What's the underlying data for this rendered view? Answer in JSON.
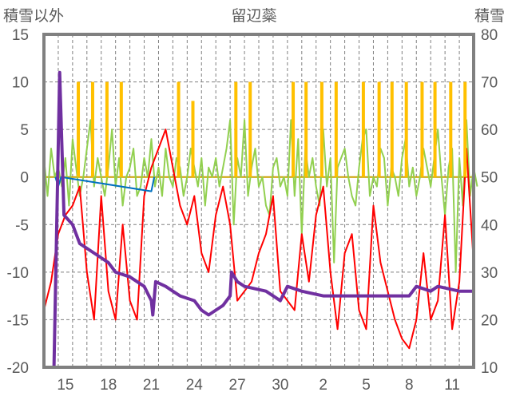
{
  "chart_data": {
    "type": "line",
    "title": "留辺蘂",
    "ylabel_left": "積雪以外",
    "ylabel_right": "積雪",
    "ylim_left": [
      -20,
      15
    ],
    "yticks_left": [
      "15",
      "10",
      "5",
      "0",
      "-5",
      "-10",
      "-15",
      "-20"
    ],
    "ylim_right": [
      10,
      80
    ],
    "yticks_right": [
      "80",
      "70",
      "60",
      "50",
      "40",
      "30",
      "20",
      "10"
    ],
    "x_unit": "days since Dec 14",
    "xlim": [
      0,
      30
    ],
    "xtick_labels": [
      "15",
      "18",
      "21",
      "24",
      "27",
      "30",
      "2",
      "5",
      "8",
      "11"
    ],
    "grid": true,
    "series": [
      {
        "name": "green",
        "axis": "left",
        "color": "#92d050",
        "x_step": 0.25,
        "values": [
          2,
          -2,
          3,
          0,
          1,
          -1,
          2,
          -3,
          4,
          1,
          -2,
          0,
          3,
          6,
          -1,
          2,
          0,
          -2,
          1,
          5,
          -1,
          2,
          -3,
          0,
          1,
          3,
          -2,
          -1,
          2,
          0,
          4,
          -1,
          1,
          -2,
          3,
          0,
          -1,
          2,
          1,
          -2,
          0,
          3,
          1,
          -1,
          2,
          -3,
          1,
          0,
          2,
          -1,
          1,
          3,
          6,
          -5,
          2,
          0,
          6,
          -2,
          1,
          3,
          -1,
          0,
          -3,
          -4,
          1,
          2,
          -1,
          0,
          -2,
          6,
          -2,
          4,
          -6,
          3,
          0,
          2,
          -1,
          -3,
          5,
          -1,
          2,
          -9,
          1,
          2,
          3,
          0,
          -2,
          -3,
          1,
          4,
          5,
          -2,
          0,
          -1,
          3,
          2,
          -3,
          1,
          0,
          -2,
          2,
          4,
          -1,
          1,
          -2,
          0,
          3,
          1,
          -1,
          2,
          5,
          0,
          -4,
          1,
          3,
          -10,
          2,
          -3,
          6,
          -2,
          1,
          -1
        ]
      },
      {
        "name": "red",
        "axis": "left",
        "color": "#ff0000",
        "x_step": 0.5,
        "values": [
          -14,
          -11,
          -6,
          -4,
          -3,
          -1,
          -10,
          -15,
          -2,
          -12,
          -15,
          -5,
          -13,
          -15,
          -2,
          1,
          3,
          5,
          1,
          -3,
          -5,
          -2,
          -8,
          -10,
          -4,
          -1,
          -5,
          -13,
          -12,
          -11,
          -8,
          -6,
          -2,
          -12,
          -13,
          -14,
          -6,
          -11,
          -4,
          -1,
          -10,
          -16,
          -8,
          -6,
          -14,
          -16,
          -3,
          -9,
          -12,
          -15,
          -17,
          -18,
          -15,
          -8,
          -15,
          -13,
          -4,
          -16,
          -11,
          3,
          -9
        ]
      },
      {
        "name": "orange",
        "axis": "left",
        "color": "#ffc000",
        "type": "bar",
        "x": [
          2.4,
          3.4,
          4.4,
          5.4,
          9.4,
          10.4,
          13.4,
          14.4,
          17.4,
          18.3,
          19.4,
          20.4,
          22.3,
          23.4,
          24.3,
          25.3,
          26.4,
          27.3,
          28.4,
          29.4
        ],
        "values": [
          10,
          10,
          10,
          10,
          10,
          8,
          10,
          10,
          10,
          10,
          10,
          10,
          10,
          10,
          10,
          10,
          10,
          10,
          10,
          10
        ]
      },
      {
        "name": "blue",
        "axis": "left",
        "color": "#0070c0",
        "x": [
          0.8,
          1.0,
          1.2,
          7.5,
          7.7
        ],
        "values": [
          0,
          -1,
          0,
          -1.5,
          0
        ]
      },
      {
        "name": "purple",
        "axis": "right",
        "color": "#7030a0",
        "x": [
          0,
          0.7,
          1.1,
          1.4,
          2,
          2.5,
          3.5,
          4.5,
          5,
          6,
          7,
          7.5,
          7.6,
          7.8,
          8.5,
          9,
          9.5,
          10.5,
          11,
          11.5,
          12,
          12.5,
          13,
          13.1,
          13.5,
          14,
          15.5,
          16,
          16.5,
          17,
          18,
          19.5,
          22,
          25.5,
          26,
          27,
          27.5,
          29,
          29.9
        ],
        "values": [
          10,
          10,
          72,
          42,
          40,
          36,
          34,
          32,
          30,
          29,
          27,
          24,
          21,
          28,
          27,
          26,
          25,
          24,
          22,
          21,
          22,
          23,
          25,
          30,
          28,
          27,
          26,
          25,
          24,
          27,
          26,
          25,
          25,
          25,
          27,
          26,
          27,
          26,
          26
        ]
      }
    ]
  }
}
